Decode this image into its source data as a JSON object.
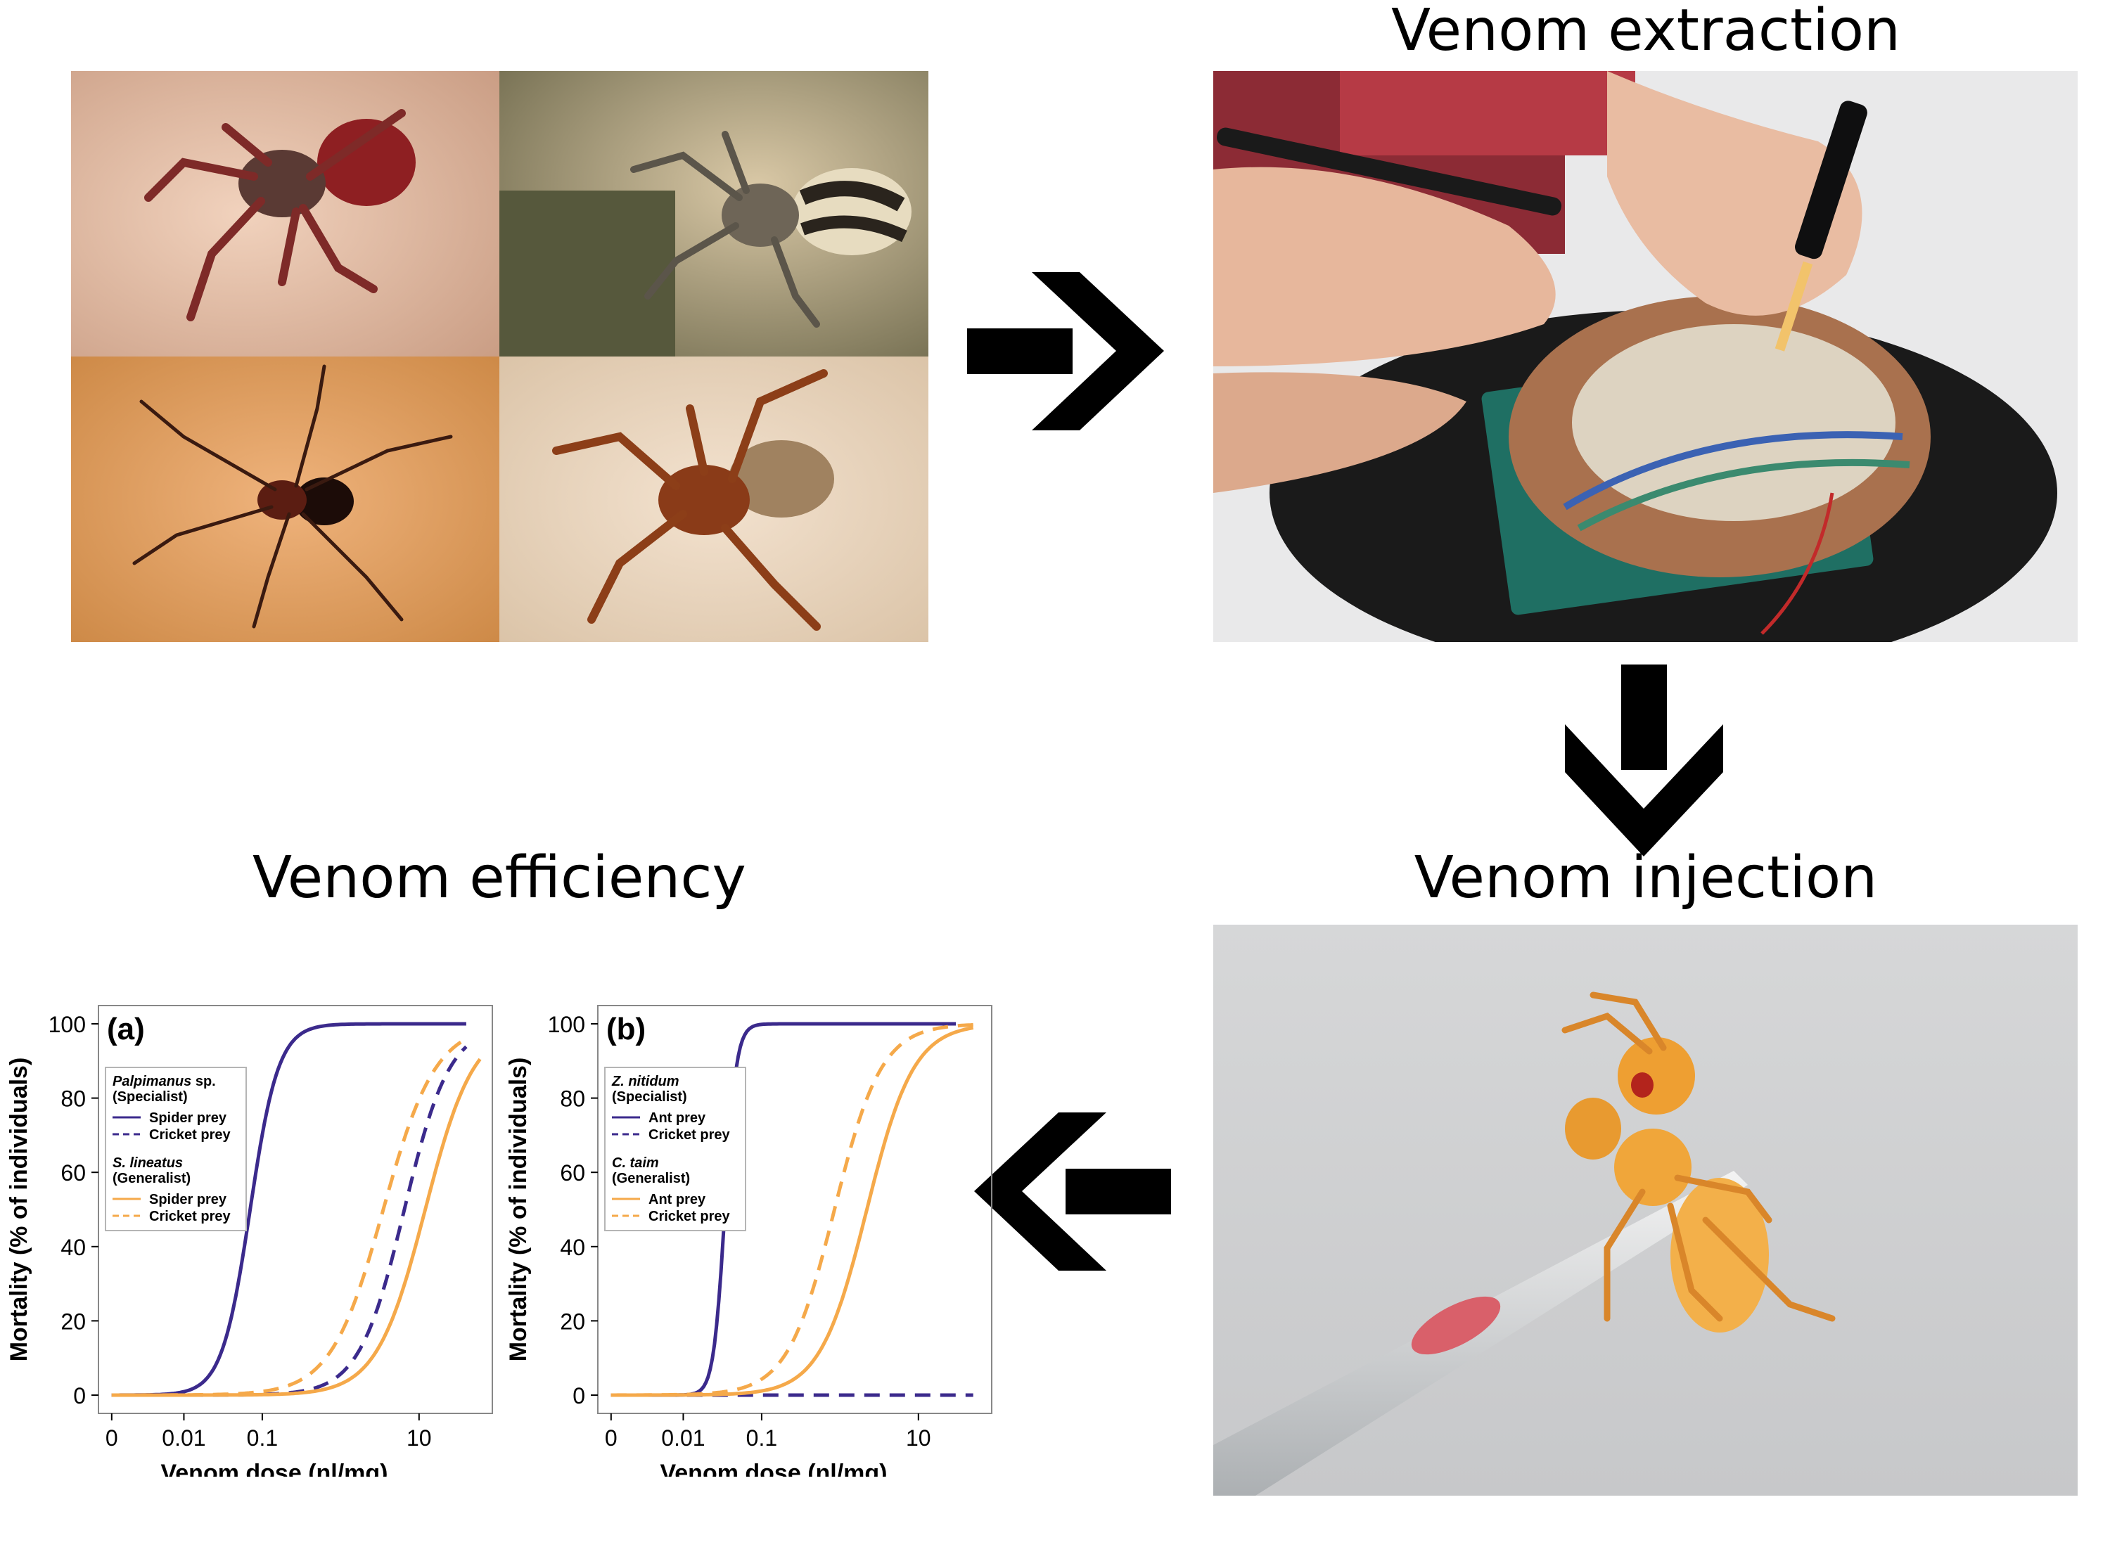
{
  "headings": {
    "extraction": "Venom extraction",
    "injection": "Venom injection",
    "efficiency": "Venom efficiency"
  },
  "colors": {
    "specialist": "#3b2a8c",
    "generalist": "#f5a94a",
    "arrow": "#000000"
  },
  "icons": [
    "arrow-right-icon",
    "arrow-down-icon",
    "arrow-left-icon"
  ],
  "chart_data": [
    {
      "type": "line",
      "panel_label": "(a)",
      "xlabel": "Venom dose (nl/mg)",
      "ylabel": "Mortality (% of individuals)",
      "x_scale": "log",
      "xlim": [
        0.001,
        70
      ],
      "ylim": [
        0,
        100
      ],
      "x_ticks": [
        "0",
        "0.01",
        "0.1",
        "10"
      ],
      "y_ticks": [
        "0",
        "20",
        "40",
        "60",
        "80",
        "100"
      ],
      "legend": {
        "groups": [
          {
            "species": "Palpimanus",
            "suffix": " sp.",
            "role": "(Specialist)",
            "entries": [
              {
                "label": "Spider prey",
                "style": "solid",
                "color": "specialist"
              },
              {
                "label": "Cricket prey",
                "style": "dashed",
                "color": "specialist"
              }
            ]
          },
          {
            "species": "S. lineatus",
            "suffix": "",
            "role": "(Generalist)",
            "entries": [
              {
                "label": "Spider prey",
                "style": "solid",
                "color": "generalist"
              },
              {
                "label": "Cricket prey",
                "style": "dashed",
                "color": "generalist"
              }
            ]
          }
        ]
      },
      "series": [
        {
          "name": "Spider prey",
          "group": "Specialist",
          "color": "specialist",
          "style": "solid",
          "ed50": 0.07,
          "slope": 2.4,
          "end": 40
        },
        {
          "name": "Cricket prey",
          "group": "Specialist",
          "color": "specialist",
          "style": "dashed",
          "ed50": 6.5,
          "slope": 1.5,
          "end": 40
        },
        {
          "name": "Spider prey",
          "group": "Generalist",
          "color": "generalist",
          "style": "solid",
          "ed50": 12,
          "slope": 1.4,
          "end": 60
        },
        {
          "name": "Cricket prey",
          "group": "Generalist",
          "color": "generalist",
          "style": "dashed",
          "ed50": 3.5,
          "slope": 1.3,
          "end": 40
        }
      ]
    },
    {
      "type": "line",
      "panel_label": "(b)",
      "xlabel": "Venom dose (nl/mg)",
      "ylabel": "Mortality (% of individuals)",
      "x_scale": "log",
      "xlim": [
        0.001,
        70
      ],
      "ylim": [
        0,
        100
      ],
      "x_ticks": [
        "0",
        "0.01",
        "0.1",
        "10"
      ],
      "y_ticks": [
        "0",
        "20",
        "40",
        "60",
        "80",
        "100"
      ],
      "legend": {
        "groups": [
          {
            "species": "Z. nitidum",
            "suffix": "",
            "role": "(Specialist)",
            "entries": [
              {
                "label": "Ant prey",
                "style": "solid",
                "color": "specialist"
              },
              {
                "label": "Cricket prey",
                "style": "dashed",
                "color": "specialist"
              }
            ]
          },
          {
            "species": "C. taim",
            "suffix": "",
            "role": "(Generalist)",
            "entries": [
              {
                "label": "Ant prey",
                "style": "solid",
                "color": "generalist"
              },
              {
                "label": "Cricket prey",
                "style": "dashed",
                "color": "generalist"
              }
            ]
          }
        ]
      },
      "series": [
        {
          "name": "Ant prey",
          "group": "Specialist",
          "color": "specialist",
          "style": "solid",
          "ed50": 0.034,
          "slope": 6.0,
          "end": 30
        },
        {
          "name": "Cricket prey",
          "group": "Specialist",
          "color": "specialist",
          "style": "dashed",
          "ed50": null,
          "flat": 0,
          "end": 50
        },
        {
          "name": "Ant prey",
          "group": "Generalist",
          "color": "generalist",
          "style": "solid",
          "ed50": 2.2,
          "slope": 1.45,
          "end": 50
        },
        {
          "name": "Cricket prey",
          "group": "Generalist",
          "color": "generalist",
          "style": "dashed",
          "ed50": 0.85,
          "slope": 1.45,
          "end": 50
        }
      ]
    }
  ]
}
